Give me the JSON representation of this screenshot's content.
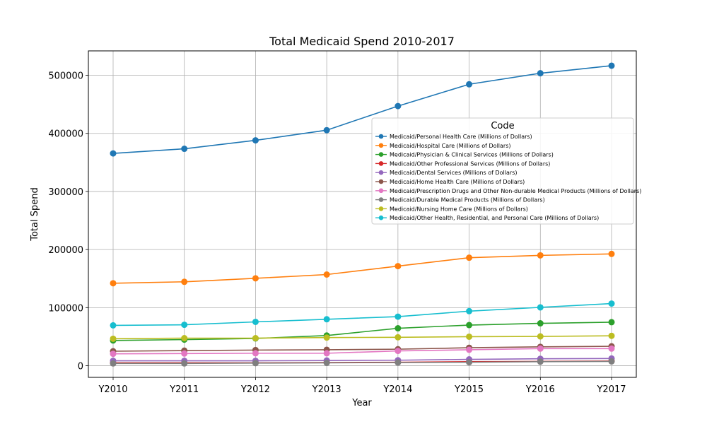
{
  "chart_data": {
    "type": "line",
    "title": "Total Medicaid Spend 2010-2017",
    "xlabel": "Year",
    "ylabel": "Total Spend",
    "categories": [
      "Y2010",
      "Y2011",
      "Y2012",
      "Y2013",
      "Y2014",
      "Y2015",
      "Y2016",
      "Y2017"
    ],
    "ylim": [
      -20000,
      542000
    ],
    "yticks": [
      0,
      100000,
      200000,
      300000,
      400000,
      500000
    ],
    "ytick_labels": [
      "0",
      "100000",
      "200000",
      "300000",
      "400000",
      "500000"
    ],
    "grid": true,
    "legend_title": "Code",
    "legend_position": "right",
    "series": [
      {
        "name": "Medicaid/Personal Health Care (Millions of Dollars)",
        "color": "#1f77b4",
        "values": [
          365500,
          373500,
          388000,
          405500,
          447000,
          484500,
          503500,
          516500
        ]
      },
      {
        "name": "Medicaid/Hospital Care (Millions of Dollars)",
        "color": "#ff7f0e",
        "values": [
          142000,
          144500,
          150500,
          157000,
          171500,
          186000,
          190000,
          192500
        ]
      },
      {
        "name": "Medicaid/Physician & Clinical Services (Millions of Dollars)",
        "color": "#2ca02c",
        "values": [
          43500,
          45000,
          47000,
          52000,
          64500,
          70000,
          73000,
          75000
        ]
      },
      {
        "name": "Medicaid/Other Professional Services (Millions of Dollars)",
        "color": "#d62728",
        "values": [
          5000,
          5000,
          5000,
          5500,
          6000,
          7000,
          7500,
          8000
        ]
      },
      {
        "name": "Medicaid/Dental Services (Millions of Dollars)",
        "color": "#9467bd",
        "values": [
          8500,
          8500,
          8500,
          9000,
          9500,
          11000,
          12000,
          12500
        ]
      },
      {
        "name": "Medicaid/Home Health Care (Millions of Dollars)",
        "color": "#8c564b",
        "values": [
          25000,
          26000,
          27000,
          27500,
          28500,
          31000,
          32500,
          33500
        ]
      },
      {
        "name": "Medicaid/Prescription Drugs and Other Non-durable Medical Products (Millions of Dollars)",
        "color": "#e377c2",
        "values": [
          20500,
          21000,
          21500,
          21500,
          25500,
          27500,
          29500,
          29500
        ]
      },
      {
        "name": "Medicaid/Durable Medical Products (Millions of Dollars)",
        "color": "#7f7f7f",
        "values": [
          4000,
          4000,
          4500,
          5000,
          5500,
          6000,
          7000,
          7500
        ]
      },
      {
        "name": "Medicaid/Nursing Home Care (Millions of Dollars)",
        "color": "#bcbd22",
        "values": [
          46500,
          47500,
          47500,
          48500,
          49000,
          50000,
          50500,
          51500
        ]
      },
      {
        "name": "Medicaid/Other Health, Residential, and Personal Care (Millions of Dollars)",
        "color": "#17becf",
        "values": [
          69500,
          70500,
          75500,
          80000,
          84500,
          94000,
          100500,
          107000
        ]
      }
    ]
  }
}
